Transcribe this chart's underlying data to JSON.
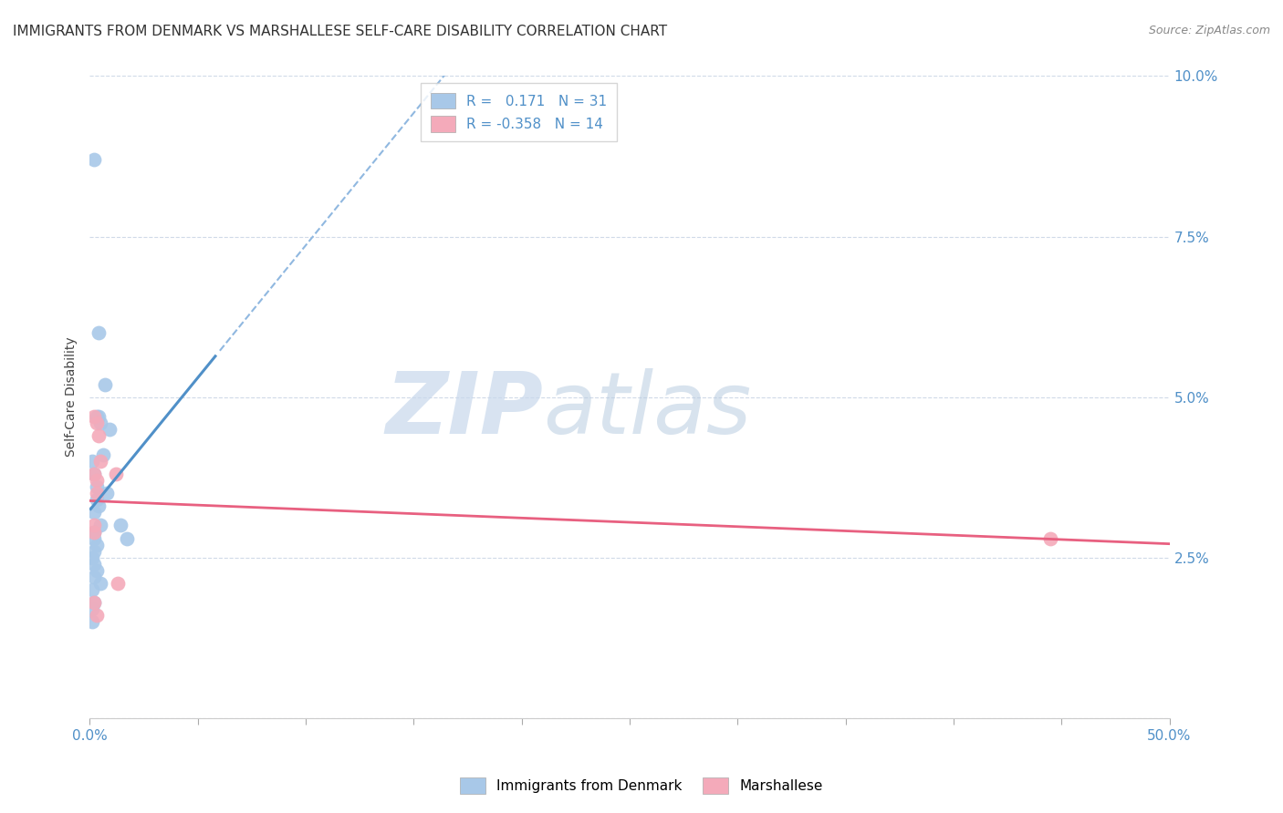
{
  "title": "IMMIGRANTS FROM DENMARK VS MARSHALLESE SELF-CARE DISABILITY CORRELATION CHART",
  "source": "Source: ZipAtlas.com",
  "ylabel": "Self-Care Disability",
  "xlim": [
    0,
    0.5
  ],
  "ylim": [
    0,
    0.1
  ],
  "xtick_positions": [
    0.0,
    0.05,
    0.1,
    0.15,
    0.2,
    0.25,
    0.3,
    0.35,
    0.4,
    0.45,
    0.5
  ],
  "xtick_labels": [
    "0.0%",
    "",
    "",
    "",
    "",
    "",
    "",
    "",
    "",
    "",
    "50.0%"
  ],
  "ytick_positions": [
    0.0,
    0.025,
    0.05,
    0.075,
    0.1
  ],
  "ytick_labels": [
    "",
    "2.5%",
    "5.0%",
    "7.5%",
    "10.0%"
  ],
  "blue_R": 0.171,
  "blue_N": 31,
  "pink_R": -0.358,
  "pink_N": 14,
  "blue_color": "#a8c8e8",
  "pink_color": "#f4aaba",
  "blue_line_color": "#5090c8",
  "pink_line_color": "#e86080",
  "diag_line_color": "#90b8e0",
  "watermark_zip": "ZIP",
  "watermark_atlas": "atlas",
  "blue_points_x": [
    0.002,
    0.004,
    0.007,
    0.009,
    0.003,
    0.004,
    0.005,
    0.006,
    0.001,
    0.002,
    0.003,
    0.008,
    0.003,
    0.004,
    0.002,
    0.005,
    0.002,
    0.002,
    0.003,
    0.002,
    0.001,
    0.002,
    0.003,
    0.002,
    0.005,
    0.001,
    0.002,
    0.014,
    0.017,
    0.001,
    0.001
  ],
  "blue_points_y": [
    0.087,
    0.06,
    0.052,
    0.045,
    0.047,
    0.047,
    0.046,
    0.041,
    0.04,
    0.038,
    0.036,
    0.035,
    0.034,
    0.033,
    0.032,
    0.03,
    0.029,
    0.028,
    0.027,
    0.026,
    0.025,
    0.024,
    0.023,
    0.022,
    0.021,
    0.02,
    0.018,
    0.03,
    0.028,
    0.017,
    0.015
  ],
  "pink_points_x": [
    0.002,
    0.003,
    0.004,
    0.005,
    0.002,
    0.003,
    0.003,
    0.012,
    0.002,
    0.002,
    0.013,
    0.445,
    0.002,
    0.003
  ],
  "pink_points_y": [
    0.047,
    0.046,
    0.044,
    0.04,
    0.038,
    0.037,
    0.035,
    0.038,
    0.03,
    0.029,
    0.021,
    0.028,
    0.018,
    0.016
  ],
  "legend_label_blue": "Immigrants from Denmark",
  "legend_label_pink": "Marshallese"
}
